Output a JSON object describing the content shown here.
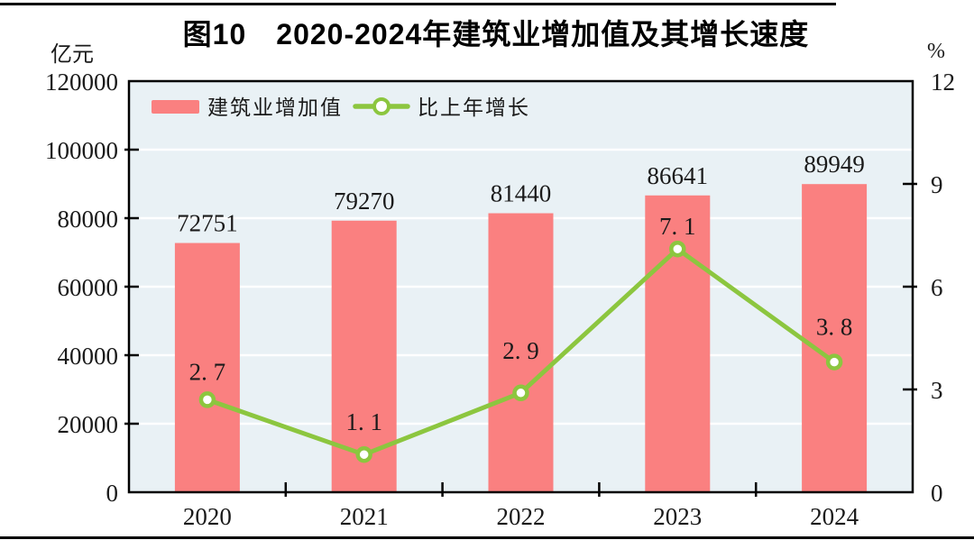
{
  "figure": {
    "title": "图10　2020-2024年建筑业增加值及其增长速度",
    "left_axis_unit": "亿元",
    "right_axis_unit": "%"
  },
  "legend": {
    "items": [
      {
        "label": "建筑业增加值",
        "marker": "bar-swatch",
        "color": "#FA8080"
      },
      {
        "label": "比上年增长",
        "marker": "line-marker",
        "color": "#8CC63F"
      }
    ],
    "position": "top-left-inside"
  },
  "chart_data": {
    "type": "combo-bar-line",
    "categories": [
      "2020",
      "2021",
      "2022",
      "2023",
      "2024"
    ],
    "series": [
      {
        "name": "建筑业增加值",
        "type": "bar",
        "axis": "left",
        "color": "#FA8080",
        "values": [
          72751,
          79270,
          81440,
          86641,
          89949
        ],
        "data_labels": [
          "72751",
          "79270",
          "81440",
          "86641",
          "89949"
        ]
      },
      {
        "name": "比上年增长",
        "type": "line",
        "axis": "right",
        "color": "#8CC63F",
        "marker": "circle-open",
        "values": [
          2.7,
          1.1,
          2.9,
          7.1,
          3.8
        ],
        "data_labels": [
          "2. 7",
          "1. 1",
          "2. 9",
          "7. 1",
          "3. 8"
        ]
      }
    ],
    "left_axis": {
      "unit": "亿元",
      "min": 0,
      "max": 120000,
      "tick_step": 20000,
      "tick_labels": [
        "0",
        "20000",
        "40000",
        "60000",
        "80000",
        "100000",
        "120000"
      ]
    },
    "right_axis": {
      "unit": "%",
      "min": 0,
      "max": 12,
      "tick_step": 3,
      "tick_labels": [
        "0",
        "3",
        "6",
        "9",
        "12"
      ]
    },
    "grid": "horizontal-white",
    "plot_background": "#E9F1F5",
    "frame_color": "#000000",
    "gridline_color": "#FFFFFF",
    "text_color": "#1A1A1A"
  }
}
